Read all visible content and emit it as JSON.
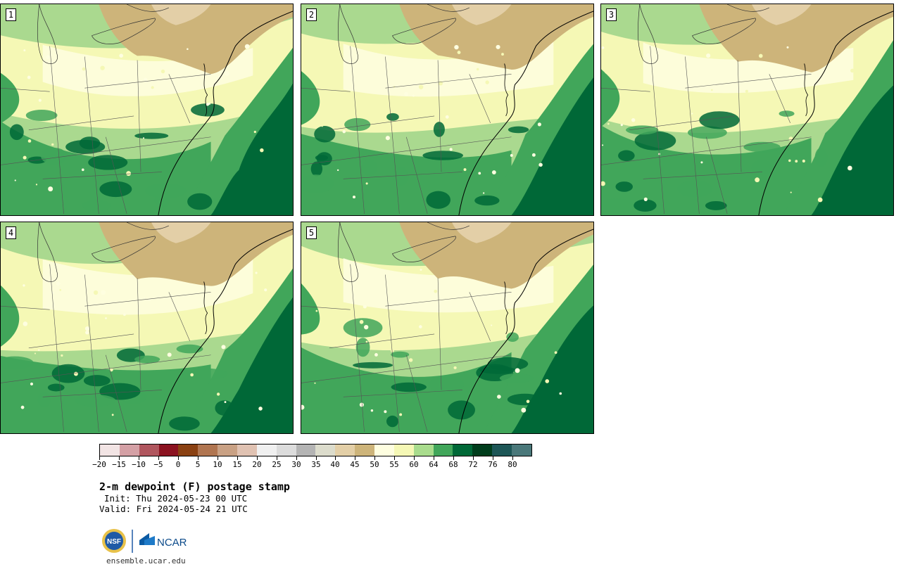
{
  "panels": [
    {
      "label": "1"
    },
    {
      "label": "2"
    },
    {
      "label": "3"
    },
    {
      "label": "4"
    },
    {
      "label": "5"
    }
  ],
  "colorbar": {
    "colors": [
      "#f2e4e4",
      "#d4a0a5",
      "#b0565e",
      "#8b1220",
      "#8a4112",
      "#b07550",
      "#c9a184",
      "#e0c2b2",
      "#f0f0f0",
      "#dcdcdc",
      "#b4b4b4",
      "#dcdccc",
      "#e3cfa7",
      "#cdb47a",
      "#fefee0",
      "#f5f8b5",
      "#a9dc8d",
      "#41a65a",
      "#006837",
      "#003d1c",
      "#1d5656",
      "#4a787a"
    ],
    "tick_labels": [
      "−20",
      "−15",
      "−10",
      "−5",
      "0",
      "5",
      "10",
      "15",
      "20",
      "25",
      "30",
      "35",
      "40",
      "45",
      "50",
      "55",
      "60",
      "64",
      "68",
      "72",
      "76",
      "80"
    ]
  },
  "title": "2-m dewpoint (F) postage stamp",
  "init": "Init: Thu 2024-05-23 00 UTC",
  "valid": "Valid: Fri 2024-05-24 21 UTC",
  "footer_url": "ensemble.ucar.edu",
  "logos": {
    "nsf": "NSF",
    "ncar": "NCAR"
  }
}
